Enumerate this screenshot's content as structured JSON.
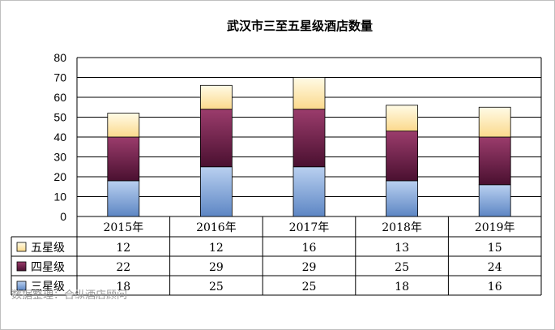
{
  "chart_data": {
    "type": "bar",
    "stacked": true,
    "title": "武汉市三至五星级酒店数量",
    "categories": [
      "2015年",
      "2016年",
      "2017年",
      "2018年",
      "2019年"
    ],
    "series": [
      {
        "name": "三星级",
        "values": [
          18,
          25,
          25,
          18,
          16
        ],
        "color": "#7fa3d6"
      },
      {
        "name": "四星级",
        "values": [
          22,
          29,
          29,
          25,
          24
        ],
        "color": "#7a2a52"
      },
      {
        "name": "五星级",
        "values": [
          12,
          12,
          16,
          13,
          15
        ],
        "color": "#fde9a8"
      }
    ],
    "ylim": [
      0,
      80
    ],
    "yticks": [
      0,
      10,
      20,
      30,
      40,
      50,
      60,
      70,
      80
    ],
    "grid": true,
    "legend": "data-table-left",
    "source_note": "数据整理：合纵酒店顾问"
  }
}
